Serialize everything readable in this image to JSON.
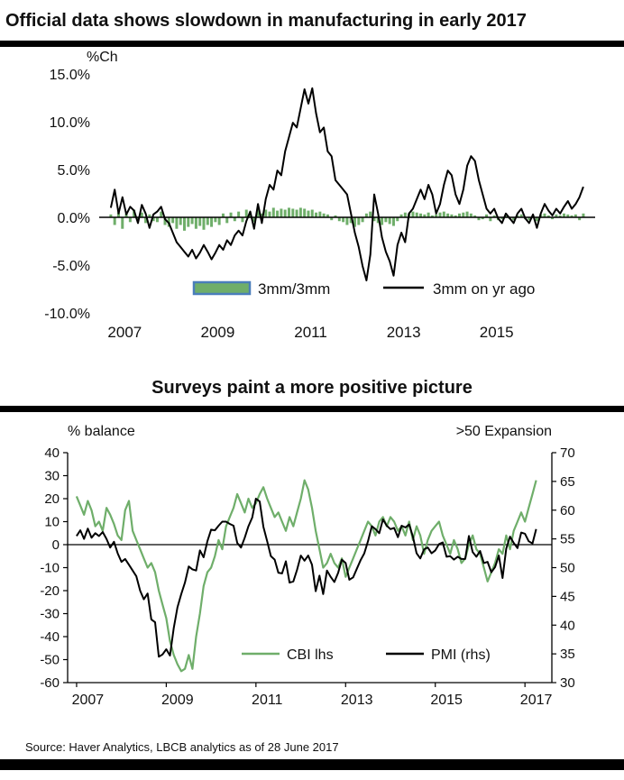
{
  "page": {
    "title1": "Official data shows slowdown in manufacturing in early 2017",
    "title2": "Surveys paint a more positive picture",
    "source": "Source: Haver Analytics, LBCB analytics as of 28 June 2017"
  },
  "colors": {
    "green": "#6fae6a",
    "black": "#000000",
    "swatch_border": "#4a7ebb"
  },
  "chart_data": [
    {
      "type": "bar",
      "title": "Official data shows slowdown in manufacturing in early 2017",
      "y_axis_label": "%Ch",
      "ylim": [
        -10,
        15
      ],
      "y_tick_values": [
        15,
        10,
        5,
        0,
        -5,
        -10
      ],
      "y_ticks": [
        "15.0%",
        "10.0%",
        "5.0%",
        "0.0%",
        "-5.0%",
        "-10.0%"
      ],
      "x_tick_values": [
        2007,
        2009,
        2011,
        2013,
        2015
      ],
      "x_ticks": [
        "2007",
        "2009",
        "2011",
        "2013",
        "2015"
      ],
      "xlim": [
        2006.75,
        2017.42
      ],
      "x_start": 2007.0,
      "x_step": "monthly",
      "grid": false,
      "legend_position": "inside-bottom",
      "series": [
        {
          "name": "3mm/3mm",
          "type": "bar",
          "color_key": "green",
          "values": [
            0.3,
            -0.8,
            0.5,
            -1.2,
            0.4,
            -0.5,
            0.8,
            -0.3,
            0.5,
            -0.6,
            0.3,
            -0.4,
            -0.5,
            0.6,
            -0.8,
            -1.0,
            -0.6,
            -1.2,
            -0.8,
            -1.4,
            -1.0,
            -0.7,
            -1.2,
            -0.9,
            -1.3,
            -0.8,
            -1.0,
            -0.5,
            -0.8,
            0.4,
            -0.6,
            0.5,
            -0.4,
            0.6,
            -0.5,
            0.8,
            0.5,
            -0.5,
            0.9,
            0.4,
            0.8,
            0.6,
            1.0,
            0.7,
            0.9,
            0.8,
            1.0,
            0.9,
            0.8,
            1.0,
            0.9,
            0.7,
            0.8,
            0.5,
            0.6,
            0.4,
            0.3,
            -0.3,
            0.2,
            -0.4,
            -0.5,
            -0.8,
            -0.6,
            -1.0,
            -0.8,
            -0.5,
            0.4,
            0.6,
            -0.4,
            -0.6,
            -0.8,
            -0.5,
            -0.7,
            -0.9,
            -0.4,
            0.3,
            0.5,
            0.4,
            0.6,
            0.5,
            0.4,
            0.3,
            0.5,
            0.2,
            0.3,
            0.5,
            0.6,
            0.4,
            0.3,
            0.2,
            0.4,
            0.5,
            0.6,
            0.4,
            0.2,
            -0.3,
            -0.2,
            0.3,
            -0.4,
            0.2,
            -0.3,
            -0.2,
            0.3,
            -0.2,
            -0.3,
            0.2,
            0.3,
            -0.2,
            -0.3,
            0.2,
            -0.4,
            0.3,
            0.4,
            0.2,
            -0.2,
            0.3,
            0.2,
            0.4,
            0.3,
            0.2,
            0.3,
            -0.3,
            0.4
          ]
        },
        {
          "name": "3mm on yr ago",
          "type": "line",
          "color_key": "black",
          "values": [
            1.0,
            2.9,
            0.4,
            2.1,
            0.3,
            1.1,
            0.7,
            -0.6,
            1.3,
            0.4,
            -1.1,
            0.3,
            0.6,
            1.1,
            -0.2,
            -0.6,
            -1.6,
            -2.6,
            -3.1,
            -3.6,
            -4.1,
            -3.4,
            -4.3,
            -3.7,
            -2.9,
            -3.6,
            -4.4,
            -3.7,
            -2.9,
            -3.4,
            -2.4,
            -2.9,
            -1.9,
            -1.4,
            -1.9,
            -0.4,
            0.6,
            -1.2,
            1.4,
            -0.6,
            1.9,
            3.4,
            2.9,
            4.9,
            4.4,
            6.9,
            8.4,
            9.9,
            9.4,
            11.4,
            13.4,
            11.9,
            13.5,
            10.9,
            8.9,
            9.4,
            6.9,
            6.4,
            3.9,
            3.4,
            2.9,
            2.4,
            0.4,
            -1.6,
            -3.1,
            -5.1,
            -6.6,
            -3.9,
            2.4,
            0.4,
            -2.1,
            -3.6,
            -4.6,
            -6.1,
            -2.9,
            -1.6,
            -2.6,
            0.4,
            0.9,
            1.9,
            2.9,
            1.9,
            3.4,
            2.4,
            0.4,
            1.4,
            3.4,
            4.9,
            4.4,
            2.4,
            1.4,
            2.9,
            5.4,
            6.4,
            5.9,
            3.9,
            2.4,
            0.9,
            0.4,
            0.9,
            -0.1,
            -0.6,
            0.4,
            -0.1,
            -0.6,
            0.4,
            0.9,
            -0.1,
            -0.6,
            0.3,
            -1.1,
            0.4,
            1.4,
            0.7,
            0.2,
            0.9,
            0.4,
            1.1,
            1.7,
            0.9,
            1.4,
            2.1,
            3.2
          ]
        }
      ]
    },
    {
      "type": "line",
      "title": "Surveys paint a more positive picture",
      "left_axis_label": "% balance",
      "right_axis_label": ">50 Expansion",
      "left_ylim": [
        -60,
        40
      ],
      "right_ylim": [
        30,
        70
      ],
      "left_ticks": [
        40,
        30,
        20,
        10,
        0,
        -10,
        -20,
        -30,
        -40,
        -50,
        -60
      ],
      "right_ticks": [
        70,
        65,
        60,
        55,
        50,
        45,
        40,
        35,
        30
      ],
      "x_tick_values": [
        2007,
        2009,
        2011,
        2013,
        2015,
        2017
      ],
      "x_ticks": [
        "2007",
        "2009",
        "2011",
        "2013",
        "2015",
        "2017"
      ],
      "xlim": [
        2006.8,
        2017.6
      ],
      "x_start": 2007.0,
      "x_step": "monthly",
      "grid": false,
      "legend_position": "inside-bottom",
      "series": [
        {
          "name": "CBI lhs",
          "axis": "left",
          "color_key": "green",
          "values": [
            21,
            17,
            13,
            19,
            15,
            8,
            10,
            6,
            16,
            13,
            9,
            4,
            2,
            15,
            19,
            6,
            2,
            -2,
            -6,
            -10,
            -8,
            -12,
            -20,
            -26,
            -32,
            -42,
            -48,
            -52,
            -55,
            -54,
            -48,
            -54,
            -40,
            -30,
            -18,
            -12,
            -10,
            -5,
            2,
            -2,
            8,
            12,
            16,
            22,
            18,
            14,
            20,
            16,
            18,
            22,
            25,
            20,
            16,
            12,
            14,
            10,
            6,
            12,
            8,
            14,
            20,
            28,
            24,
            16,
            6,
            -2,
            -10,
            -8,
            -4,
            -8,
            -10,
            -6,
            -14,
            -10,
            -6,
            -2,
            2,
            6,
            10,
            8,
            4,
            10,
            12,
            8,
            12,
            10,
            6,
            8,
            4,
            10,
            2,
            8,
            4,
            -4,
            2,
            6,
            8,
            10,
            4,
            0,
            -4,
            2,
            -2,
            -8,
            -6,
            0,
            4,
            -2,
            -4,
            -10,
            -16,
            -12,
            -8,
            -2,
            -4,
            4,
            -2,
            6,
            10,
            14,
            10,
            16,
            22,
            28
          ]
        },
        {
          "name": "PMI (rhs)",
          "axis": "right",
          "color_key": "black",
          "values": [
            55.5,
            56.5,
            55.0,
            56.8,
            55.2,
            56.0,
            55.5,
            56.2,
            55.0,
            53.5,
            54.5,
            52.5,
            51.0,
            51.5,
            50.5,
            49.5,
            48.5,
            46.0,
            44.5,
            45.5,
            41.0,
            40.5,
            34.5,
            34.9,
            35.8,
            34.7,
            39.5,
            43.1,
            45.4,
            47.4,
            50.2,
            49.7,
            49.5,
            53.0,
            51.8,
            54.6,
            56.6,
            56.5,
            57.3,
            58.0,
            58.0,
            57.6,
            57.3,
            54.3,
            53.5,
            55.2,
            57.2,
            58.7,
            62.0,
            61.5,
            57.1,
            54.6,
            52.0,
            51.4,
            49.1,
            49.0,
            51.1,
            47.4,
            47.6,
            49.6,
            52.1,
            51.2,
            52.1,
            50.5,
            45.9,
            48.6,
            45.4,
            49.5,
            48.4,
            47.5,
            49.1,
            51.4,
            50.8,
            47.9,
            48.3,
            49.8,
            51.3,
            52.5,
            54.6,
            57.2,
            56.7,
            56.0,
            58.4,
            57.3,
            56.7,
            56.9,
            55.3,
            57.3,
            57.0,
            57.5,
            55.4,
            52.5,
            51.6,
            53.2,
            53.5,
            52.5,
            53.0,
            54.1,
            54.4,
            51.9,
            52.0,
            51.4,
            51.9,
            51.5,
            51.5,
            55.5,
            52.7,
            51.9,
            52.9,
            50.8,
            51.0,
            49.2,
            50.1,
            52.1,
            48.2,
            53.3,
            55.4,
            54.3,
            53.4,
            56.1,
            55.9,
            54.6,
            54.2,
            56.7
          ]
        }
      ]
    }
  ]
}
